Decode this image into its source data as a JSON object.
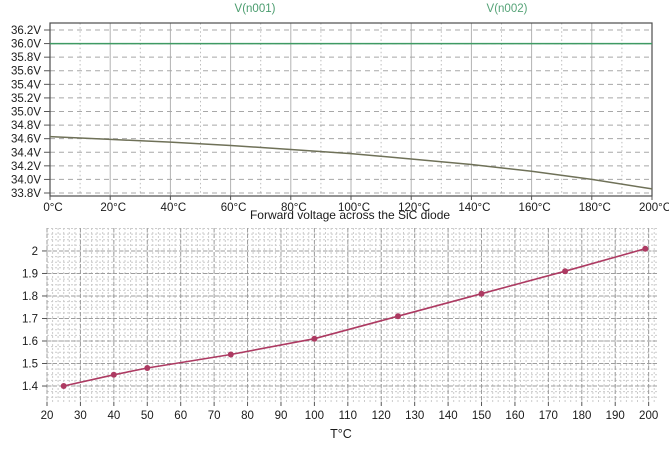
{
  "page": {
    "background": "#ffffff",
    "text_color": "#1a1a1a"
  },
  "chart_data": [
    {
      "type": "line",
      "title": "",
      "legend": [
        {
          "label": "V(n001)",
          "color": "#4a9c6e"
        },
        {
          "label": "V(n002)",
          "color": "#55a377"
        }
      ],
      "legend_position": "top",
      "grid": true,
      "x": [
        0,
        20,
        40,
        60,
        80,
        100,
        120,
        140,
        160,
        180,
        200
      ],
      "series": [
        {
          "name": "V(n001)",
          "color": "#3f9a63",
          "values": [
            36.0,
            36.0,
            36.0,
            36.0,
            36.0,
            36.0,
            36.0,
            36.0,
            36.0,
            36.0,
            36.0
          ]
        },
        {
          "name": "V(n002)",
          "color": "#6f7158",
          "values": [
            34.63,
            34.59,
            34.55,
            34.5,
            34.44,
            34.38,
            34.3,
            34.22,
            34.12,
            34.0,
            33.86
          ]
        }
      ],
      "xticks": [
        0,
        20,
        40,
        60,
        80,
        100,
        120,
        140,
        160,
        180,
        200
      ],
      "xtick_suffix": "°C",
      "yticks": [
        33.8,
        34.0,
        34.2,
        34.4,
        34.6,
        34.8,
        35.0,
        35.2,
        35.4,
        35.6,
        35.8,
        36.0,
        36.2
      ],
      "ytick_suffix": "V",
      "xlabel": "",
      "ylabel": "",
      "xlim": [
        0,
        200
      ],
      "ylim": [
        33.756,
        36.303
      ],
      "grid_color_major": "#b3b3b3",
      "grid_color_dashed": "#a8a8a8",
      "border_color": "#4d4d4d"
    },
    {
      "type": "line",
      "title": "Forward voltage across the SiC diode",
      "xlabel": "T°C",
      "ylabel": "",
      "grid": true,
      "x": [
        25,
        40,
        50,
        75,
        100,
        125,
        150,
        175,
        199
      ],
      "values": [
        1.4,
        1.45,
        1.48,
        1.54,
        1.61,
        1.71,
        1.81,
        1.91,
        2.01
      ],
      "color": "#ad3a62",
      "marker": "circle",
      "xticks": [
        20,
        30,
        40,
        50,
        60,
        70,
        80,
        90,
        100,
        110,
        120,
        130,
        140,
        150,
        160,
        170,
        180,
        190,
        200
      ],
      "yticks": [
        1.4,
        1.5,
        1.6,
        1.7,
        1.8,
        1.9,
        2.0
      ],
      "ytick_labels": [
        "1.4",
        "1.5",
        "1.6",
        "1.7",
        "1.8",
        "1.9",
        "2"
      ],
      "xlim": [
        20,
        202.5
      ],
      "ylim": [
        1.329,
        2.102
      ],
      "grid_color_minor": "#cccccc",
      "grid_color_major": "#9d9d9d"
    }
  ]
}
